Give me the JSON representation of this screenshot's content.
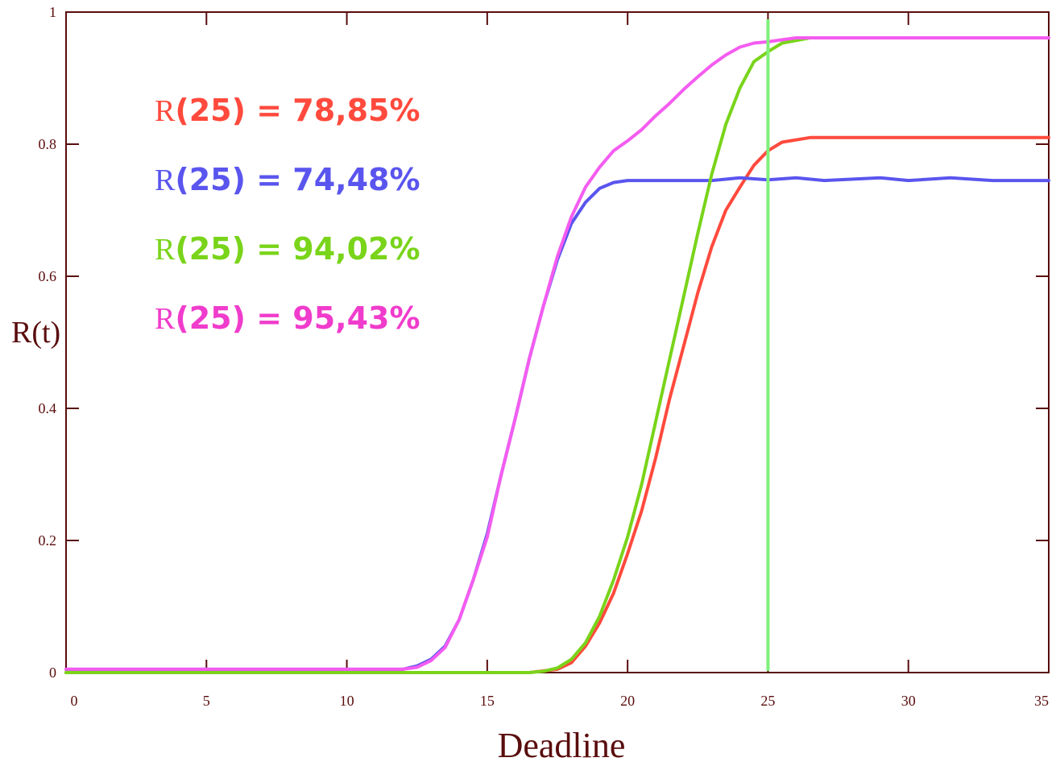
{
  "chart_data": {
    "type": "line",
    "xlabel": "Deadline",
    "ylabel": "R(t)",
    "xlim": [
      0,
      35
    ],
    "ylim": [
      0,
      1
    ],
    "x_ticks": [
      0,
      5,
      10,
      15,
      20,
      25,
      30,
      35
    ],
    "x_tick_labels": [
      "0",
      "5",
      "10",
      "15",
      "20",
      "25",
      "30",
      "35"
    ],
    "y_ticks": [
      0,
      0.2,
      0.4,
      0.6,
      0.8,
      1
    ],
    "y_tick_labels": [
      "0",
      "0.2",
      "0.4",
      "0.6",
      "0.8",
      "1"
    ],
    "grid": false,
    "vline": {
      "x": 25,
      "color": "#7ff07a"
    },
    "series": [
      {
        "color": "#ff4a3d",
        "points": [
          [
            0,
            0
          ],
          [
            16.5,
            0
          ],
          [
            17.5,
            0.005
          ],
          [
            18,
            0.015
          ],
          [
            18.5,
            0.04
          ],
          [
            19,
            0.075
          ],
          [
            19.5,
            0.12
          ],
          [
            20,
            0.18
          ],
          [
            20.5,
            0.245
          ],
          [
            21,
            0.325
          ],
          [
            21.5,
            0.415
          ],
          [
            22,
            0.495
          ],
          [
            22.5,
            0.575
          ],
          [
            23,
            0.645
          ],
          [
            23.5,
            0.7
          ],
          [
            24,
            0.735
          ],
          [
            24.5,
            0.768
          ],
          [
            25,
            0.79
          ],
          [
            25.5,
            0.803
          ],
          [
            26.5,
            0.81
          ],
          [
            35,
            0.81
          ]
        ]
      },
      {
        "color": "#5a55ee",
        "points": [
          [
            0,
            0.005
          ],
          [
            12,
            0.005
          ],
          [
            12.5,
            0.01
          ],
          [
            13,
            0.02
          ],
          [
            13.5,
            0.04
          ],
          [
            14,
            0.08
          ],
          [
            14.5,
            0.14
          ],
          [
            15,
            0.21
          ],
          [
            15.5,
            0.3
          ],
          [
            16,
            0.385
          ],
          [
            16.5,
            0.475
          ],
          [
            17,
            0.555
          ],
          [
            17.5,
            0.625
          ],
          [
            18,
            0.68
          ],
          [
            18.5,
            0.712
          ],
          [
            19,
            0.733
          ],
          [
            19.5,
            0.742
          ],
          [
            20,
            0.745
          ],
          [
            23,
            0.745
          ],
          [
            24,
            0.749
          ],
          [
            25,
            0.746
          ],
          [
            26,
            0.749
          ],
          [
            27,
            0.745
          ],
          [
            29,
            0.749
          ],
          [
            30,
            0.745
          ],
          [
            31.5,
            0.749
          ],
          [
            33,
            0.745
          ],
          [
            35,
            0.745
          ]
        ]
      },
      {
        "color": "#79d41a",
        "points": [
          [
            0,
            0
          ],
          [
            16.5,
            0
          ],
          [
            17,
            0.002
          ],
          [
            17.5,
            0.007
          ],
          [
            18,
            0.02
          ],
          [
            18.5,
            0.045
          ],
          [
            19,
            0.085
          ],
          [
            19.5,
            0.14
          ],
          [
            20,
            0.205
          ],
          [
            20.5,
            0.285
          ],
          [
            21,
            0.38
          ],
          [
            21.5,
            0.475
          ],
          [
            22,
            0.57
          ],
          [
            22.5,
            0.665
          ],
          [
            23,
            0.755
          ],
          [
            23.5,
            0.83
          ],
          [
            24,
            0.885
          ],
          [
            24.5,
            0.925
          ],
          [
            25,
            0.94
          ],
          [
            25.5,
            0.953
          ],
          [
            26.5,
            0.961
          ],
          [
            35,
            0.961
          ]
        ]
      },
      {
        "color": "#f45cf0",
        "points": [
          [
            0,
            0.005
          ],
          [
            12,
            0.005
          ],
          [
            12.5,
            0.008
          ],
          [
            13,
            0.018
          ],
          [
            13.5,
            0.038
          ],
          [
            14,
            0.08
          ],
          [
            14.5,
            0.14
          ],
          [
            15,
            0.205
          ],
          [
            15.5,
            0.3
          ],
          [
            16,
            0.385
          ],
          [
            16.5,
            0.475
          ],
          [
            17,
            0.555
          ],
          [
            17.5,
            0.63
          ],
          [
            18,
            0.69
          ],
          [
            18.5,
            0.735
          ],
          [
            19,
            0.765
          ],
          [
            19.5,
            0.79
          ],
          [
            20,
            0.805
          ],
          [
            20.5,
            0.822
          ],
          [
            21,
            0.843
          ],
          [
            21.5,
            0.862
          ],
          [
            22,
            0.883
          ],
          [
            22.5,
            0.902
          ],
          [
            23,
            0.92
          ],
          [
            23.5,
            0.935
          ],
          [
            24,
            0.947
          ],
          [
            24.5,
            0.953
          ],
          [
            25,
            0.955
          ],
          [
            25.5,
            0.958
          ],
          [
            26,
            0.961
          ],
          [
            35,
            0.961
          ]
        ]
      }
    ],
    "annotations": [
      {
        "prefix": "R",
        "value": "(25) = 78,85%",
        "color": "#ff4a3d"
      },
      {
        "prefix": "R",
        "value": "(25) = 74,48%",
        "color": "#5a55ee"
      },
      {
        "prefix": "R",
        "value": "(25) = 94,02%",
        "color": "#79d41a"
      },
      {
        "prefix": "R",
        "value": "(25) = 95,43%",
        "color": "#f03ccc"
      }
    ]
  }
}
